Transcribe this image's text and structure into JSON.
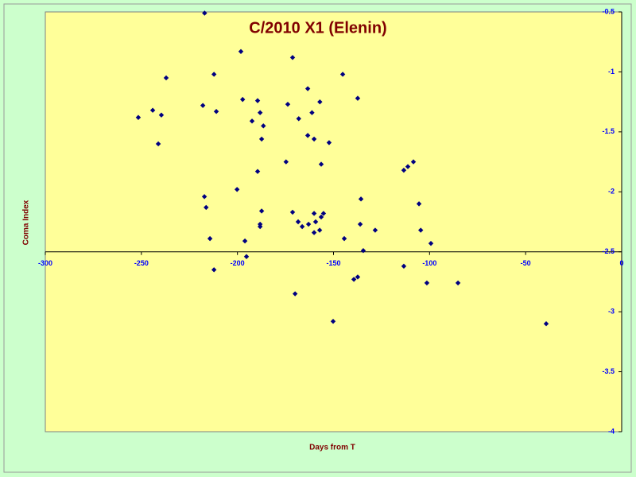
{
  "chart_data": {
    "type": "scatter",
    "title": "C/2010 X1 (Elenin)",
    "x_label": "Days from T",
    "y_label": "Coma Index",
    "x": [
      -217.1,
      -198.2,
      -171.3,
      -237.1,
      -212.2,
      -145.2,
      -163.4,
      -137.4,
      -244.1,
      -251.6,
      -239.6,
      -218.0,
      -211.0,
      -197.3,
      -189.5,
      -188.2,
      -192.4,
      -173.8,
      -168.1,
      -186.5,
      -161.2,
      -157.1,
      -163.4,
      -160.1,
      -152.3,
      -187.4,
      -241.2,
      -174.7,
      -156.4,
      -189.5,
      -113.4,
      -111.3,
      -108.4,
      -200.2,
      -217.2,
      -216.3,
      -135.7,
      -105.5,
      -187.4,
      -171.3,
      -160.1,
      -155.2,
      -156.4,
      -159.3,
      -168.4,
      -166.3,
      -163.0,
      -188.2,
      -188.2,
      -136.1,
      -160.1,
      -157.2,
      -128.3,
      -104.6,
      -214.3,
      -196.1,
      -144.4,
      -99.3,
      -134.5,
      -195.3,
      -212.2,
      -113.4,
      -139.4,
      -137.4,
      -101.4,
      -85.2,
      -170.0,
      -150.2,
      -39.3
    ],
    "values": [
      -0.51,
      -0.83,
      -0.88,
      -1.05,
      -1.02,
      -1.02,
      -1.14,
      -1.22,
      -1.32,
      -1.38,
      -1.36,
      -1.28,
      -1.33,
      -1.23,
      -1.24,
      -1.34,
      -1.41,
      -1.27,
      -1.39,
      -1.45,
      -1.34,
      -1.25,
      -1.53,
      -1.56,
      -1.59,
      -1.56,
      -1.6,
      -1.75,
      -1.77,
      -1.83,
      -1.82,
      -1.79,
      -1.75,
      -1.98,
      -2.04,
      -2.13,
      -2.06,
      -2.1,
      -2.16,
      -2.17,
      -2.18,
      -2.18,
      -2.21,
      -2.25,
      -2.25,
      -2.29,
      -2.27,
      -2.27,
      -2.29,
      -2.27,
      -2.34,
      -2.32,
      -2.32,
      -2.32,
      -2.39,
      -2.41,
      -2.39,
      -2.43,
      -2.49,
      -2.54,
      -2.65,
      -2.62,
      -2.73,
      -2.71,
      -2.76,
      -2.76,
      -2.85,
      -3.08,
      -3.1
    ],
    "color": "#000080",
    "background": "#ccffcc",
    "plot_background": "#ffff99",
    "xlim": [
      -300,
      0
    ],
    "xticks": [
      -300,
      -250,
      -200,
      -150,
      -100,
      -50,
      0
    ],
    "ylim": [
      -4,
      -0.5
    ],
    "yticks": [
      -0.5,
      -1,
      -1.5,
      -2,
      -2.5,
      -3,
      -3.5,
      -4
    ],
    "x_axis_crosses_y": -2.5,
    "grid": false
  }
}
